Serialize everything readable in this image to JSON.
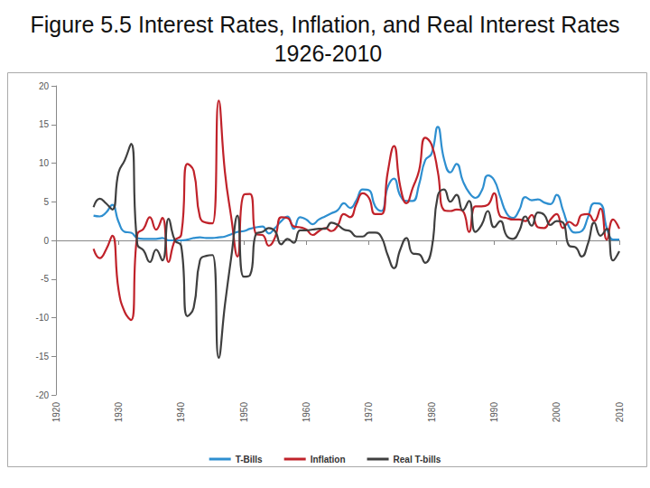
{
  "chart_data": {
    "type": "line",
    "title": "Figure 5.5 Interest Rates, Inflation, and Real Interest Rates 1926-2010",
    "x": [
      1926,
      1927,
      1928,
      1929,
      1930,
      1931,
      1932,
      1933,
      1934,
      1935,
      1936,
      1937,
      1938,
      1939,
      1940,
      1941,
      1942,
      1943,
      1944,
      1945,
      1946,
      1947,
      1948,
      1949,
      1950,
      1951,
      1952,
      1953,
      1954,
      1955,
      1956,
      1957,
      1958,
      1959,
      1960,
      1961,
      1962,
      1963,
      1964,
      1965,
      1966,
      1967,
      1968,
      1969,
      1970,
      1971,
      1972,
      1973,
      1974,
      1975,
      1976,
      1977,
      1978,
      1979,
      1980,
      1981,
      1982,
      1983,
      1984,
      1985,
      1986,
      1987,
      1988,
      1989,
      1990,
      1991,
      1992,
      1993,
      1994,
      1995,
      1996,
      1997,
      1998,
      1999,
      2000,
      2001,
      2002,
      2003,
      2004,
      2005,
      2006,
      2007,
      2008,
      2009,
      2010
    ],
    "series": [
      {
        "name": "T-Bills",
        "color": "#2e8fd0",
        "values": [
          3.2,
          3.1,
          3.6,
          4.6,
          2.4,
          1.1,
          1.0,
          0.3,
          0.2,
          0.2,
          0.2,
          0.3,
          0.0,
          0.0,
          0.0,
          0.1,
          0.3,
          0.4,
          0.3,
          0.3,
          0.4,
          0.5,
          0.8,
          1.1,
          1.2,
          1.5,
          1.7,
          1.8,
          0.9,
          1.6,
          2.5,
          3.1,
          1.5,
          3.0,
          2.7,
          2.1,
          2.7,
          3.1,
          3.5,
          3.9,
          4.8,
          4.2,
          5.2,
          6.6,
          6.5,
          4.4,
          3.8,
          6.9,
          8.0,
          5.8,
          5.1,
          5.1,
          7.2,
          10.4,
          11.2,
          14.7,
          10.5,
          8.8,
          9.9,
          7.7,
          6.2,
          5.5,
          6.4,
          8.4,
          7.8,
          5.6,
          3.5,
          2.9,
          3.9,
          5.6,
          5.2,
          5.3,
          4.9,
          4.7,
          5.9,
          3.9,
          1.7,
          1.0,
          1.2,
          3.0,
          4.8,
          4.7,
          1.6,
          0.1,
          0.1
        ]
      },
      {
        "name": "Inflation",
        "color": "#c0222a",
        "values": [
          -1.1,
          -2.3,
          -1.2,
          0.6,
          -6.4,
          -9.3,
          -10.3,
          0.8,
          1.5,
          3.0,
          1.4,
          2.9,
          -2.8,
          0.0,
          0.7,
          9.9,
          9.0,
          3.0,
          2.3,
          2.2,
          18.1,
          8.8,
          3.0,
          -2.1,
          5.9,
          6.0,
          0.8,
          0.7,
          -0.7,
          0.4,
          3.0,
          2.9,
          1.8,
          1.7,
          1.4,
          0.7,
          1.2,
          1.6,
          1.2,
          1.9,
          3.4,
          3.0,
          4.7,
          6.1,
          5.5,
          3.4,
          3.4,
          8.8,
          12.2,
          7.0,
          4.8,
          6.8,
          9.0,
          13.3,
          12.4,
          8.9,
          3.9,
          3.8,
          4.0,
          3.8,
          1.1,
          4.4,
          4.4,
          4.6,
          6.1,
          3.1,
          2.9,
          2.7,
          2.7,
          2.5,
          3.3,
          1.7,
          1.6,
          2.7,
          3.4,
          1.6,
          2.4,
          1.9,
          3.3,
          3.4,
          2.5,
          4.1,
          0.1,
          2.7,
          1.5
        ]
      },
      {
        "name": "Real T-bills",
        "color": "#3f3f3f",
        "values": [
          4.3,
          5.4,
          4.8,
          4.0,
          8.8,
          10.4,
          12.5,
          -0.5,
          -1.3,
          -2.8,
          -1.2,
          -2.6,
          2.8,
          0.0,
          -0.7,
          -9.8,
          -8.7,
          -2.6,
          -2.0,
          -1.9,
          -15.2,
          -8.3,
          -2.2,
          3.2,
          -4.7,
          -4.5,
          0.9,
          1.1,
          1.6,
          1.2,
          -0.5,
          0.2,
          -0.3,
          1.3,
          1.3,
          1.4,
          1.5,
          1.5,
          2.3,
          2.0,
          1.4,
          1.2,
          0.5,
          0.5,
          1.0,
          1.0,
          0.4,
          -1.9,
          -3.6,
          -1.2,
          0.3,
          -1.7,
          -1.8,
          -2.9,
          -1.2,
          5.8,
          6.6,
          5.0,
          5.9,
          3.9,
          5.1,
          1.1,
          2.0,
          3.8,
          1.7,
          2.5,
          0.6,
          0.2,
          1.2,
          3.1,
          1.9,
          3.6,
          3.3,
          2.0,
          2.5,
          2.3,
          -0.7,
          -0.9,
          -2.1,
          -0.4,
          2.3,
          0.6,
          1.5,
          -2.6,
          -1.4
        ]
      }
    ],
    "xlim": [
      1920,
      2010
    ],
    "xticks": [
      1920,
      1930,
      1940,
      1950,
      1960,
      1970,
      1980,
      1990,
      2000,
      2010
    ],
    "ylim": [
      -20,
      20
    ],
    "yticks": [
      -20,
      -15,
      -10,
      -5,
      0,
      5,
      10,
      15,
      20
    ],
    "grid": false,
    "legend": "bottom"
  }
}
